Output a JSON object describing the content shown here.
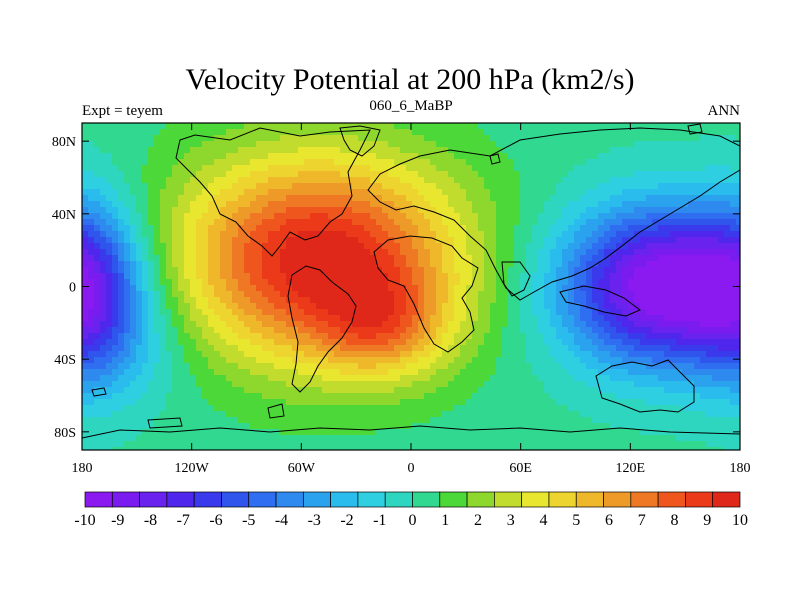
{
  "chart_data": {
    "type": "heatmap",
    "title": "Velocity Potential at 200 hPa (km2/s)",
    "subtitle_left": "Expt = teyem",
    "subtitle_center": "060_6_MaBP",
    "subtitle_right": "ANN",
    "x_ticks": [
      {
        "value": -180,
        "label": "180"
      },
      {
        "value": -120,
        "label": "120W"
      },
      {
        "value": -60,
        "label": "60W"
      },
      {
        "value": 0,
        "label": "0"
      },
      {
        "value": 60,
        "label": "60E"
      },
      {
        "value": 120,
        "label": "120E"
      },
      {
        "value": 180,
        "label": "180"
      }
    ],
    "y_ticks": [
      {
        "value": 80,
        "label": "80N"
      },
      {
        "value": 40,
        "label": "40N"
      },
      {
        "value": 0,
        "label": "0"
      },
      {
        "value": -40,
        "label": "40S"
      },
      {
        "value": -80,
        "label": "80S"
      }
    ],
    "xlim": [
      -180,
      180
    ],
    "ylim": [
      -90,
      90
    ],
    "colorbar": {
      "labels": [
        "-10",
        "-9",
        "-8",
        "-7",
        "-6",
        "-5",
        "-4",
        "-3",
        "-2",
        "-1",
        "0",
        "1",
        "2",
        "3",
        "4",
        "5",
        "6",
        "7",
        "8",
        "9",
        "10"
      ],
      "colors": [
        "#8a1aef",
        "#7a1cf0",
        "#6a22ee",
        "#4f27ec",
        "#3a3aec",
        "#2f55ec",
        "#2f6ef0",
        "#2f8af0",
        "#2ba2ee",
        "#2bbcee",
        "#2ecfe0",
        "#2ed6c0",
        "#30d890",
        "#4cd838",
        "#8ed82e",
        "#c2dc2e",
        "#e8e62e",
        "#eed42e",
        "#eeb82a",
        "#ee9a28",
        "#ee7824",
        "#ee561e",
        "#ea3a1a",
        "#e0281a"
      ]
    },
    "field": {
      "background_value": 0.3,
      "centers": [
        {
          "lon": -50,
          "lat": 15,
          "amp": 9.6,
          "sx": 55,
          "sy": 40
        },
        {
          "lon": -15,
          "lat": -22,
          "amp": 3.5,
          "sx": 25,
          "sy": 20
        },
        {
          "lon": 140,
          "lat": 0,
          "amp": -10.8,
          "sx": 40,
          "sy": 30
        },
        {
          "lon": -175,
          "lat": 0,
          "amp": -4.2,
          "sx": 20,
          "sy": 35
        },
        {
          "lon": -160,
          "lat": -35,
          "amp": -1.5,
          "sx": 30,
          "sy": 25
        }
      ]
    }
  }
}
